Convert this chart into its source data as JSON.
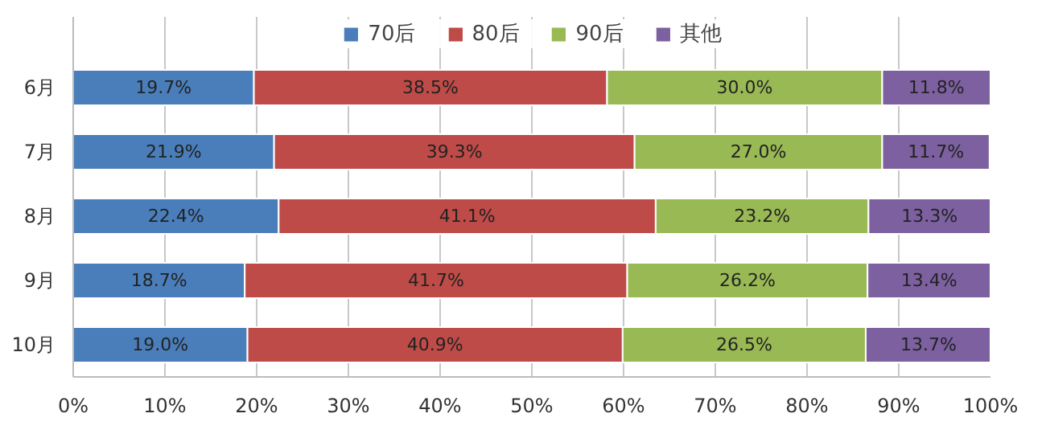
{
  "chart_data": {
    "type": "bar",
    "orientation": "horizontal",
    "stacked": true,
    "categories": [
      "6月",
      "7月",
      "8月",
      "9月",
      "10月"
    ],
    "series": [
      {
        "name": "70后",
        "color": "#4a7ebb",
        "values": [
          19.7,
          21.9,
          22.4,
          18.7,
          19.0
        ],
        "value_labels": [
          "19.7%",
          "21.9%",
          "22.4%",
          "18.7%",
          "19.0%"
        ]
      },
      {
        "name": "80后",
        "color": "#be4b48",
        "values": [
          38.5,
          39.3,
          41.1,
          41.7,
          40.9
        ],
        "value_labels": [
          "38.5%",
          "39.3%",
          "41.1%",
          "41.7%",
          "40.9%"
        ]
      },
      {
        "name": "90后",
        "color": "#98b954",
        "values": [
          30.0,
          27.0,
          23.2,
          26.2,
          26.5
        ],
        "value_labels": [
          "30.0%",
          "27.0%",
          "23.2%",
          "26.2%",
          "26.5%"
        ]
      },
      {
        "name": "其他",
        "color": "#7d60a0",
        "values": [
          11.8,
          11.7,
          13.3,
          13.4,
          13.7
        ],
        "value_labels": [
          "11.8%",
          "11.7%",
          "13.3%",
          "13.4%",
          "13.7%"
        ]
      }
    ],
    "xlim": [
      0,
      100
    ],
    "xticks": [
      {
        "value": 0,
        "label": "0%"
      },
      {
        "value": 10,
        "label": "10%"
      },
      {
        "value": 20,
        "label": "20%"
      },
      {
        "value": 30,
        "label": "30%"
      },
      {
        "value": 40,
        "label": "40%"
      },
      {
        "value": 50,
        "label": "50%"
      },
      {
        "value": 60,
        "label": "60%"
      },
      {
        "value": 70,
        "label": "70%"
      },
      {
        "value": 80,
        "label": "80%"
      },
      {
        "value": 90,
        "label": "90%"
      },
      {
        "value": 100,
        "label": "100%"
      }
    ],
    "grid": "x",
    "legend": "top"
  }
}
